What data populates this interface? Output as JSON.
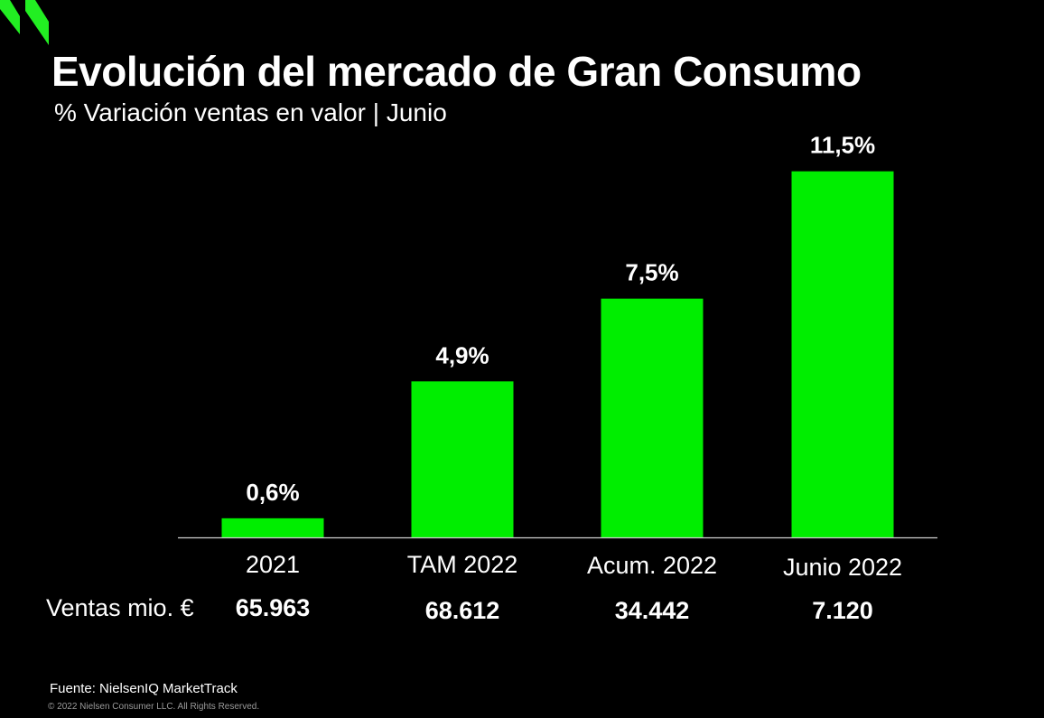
{
  "header": {
    "title": "Evolución del mercado de Gran Consumo",
    "subtitle": "% Variación ventas en valor | Junio"
  },
  "colors": {
    "background": "#000000",
    "bar": "#00ee00",
    "logo": "#22ee22",
    "text": "#ffffff"
  },
  "chart_data": {
    "type": "bar",
    "categories": [
      "2021",
      "TAM 2022",
      "Acum. 2022",
      "Junio 2022"
    ],
    "values": [
      0.6,
      4.9,
      7.5,
      11.5
    ],
    "value_labels": [
      "0,6%",
      "4,9%",
      "7,5%",
      "11,5%"
    ],
    "title": "Evolución del mercado de Gran Consumo",
    "subtitle": "% Variación ventas en valor | Junio",
    "xlabel": "",
    "ylabel": "",
    "ylim": [
      0,
      12.2
    ],
    "grid": false,
    "legend": "none",
    "sales_row": {
      "label": "Ventas mio. €",
      "values": [
        "65.963",
        "68.612",
        "34.442",
        "7.120"
      ]
    }
  },
  "footer": {
    "source": "Fuente: NielsenIQ MarketTrack",
    "copyright": "© 2022 Nielsen Consumer LLC. All Rights Reserved."
  },
  "logo": {
    "icon": "nielseniq-chevron-logo"
  }
}
